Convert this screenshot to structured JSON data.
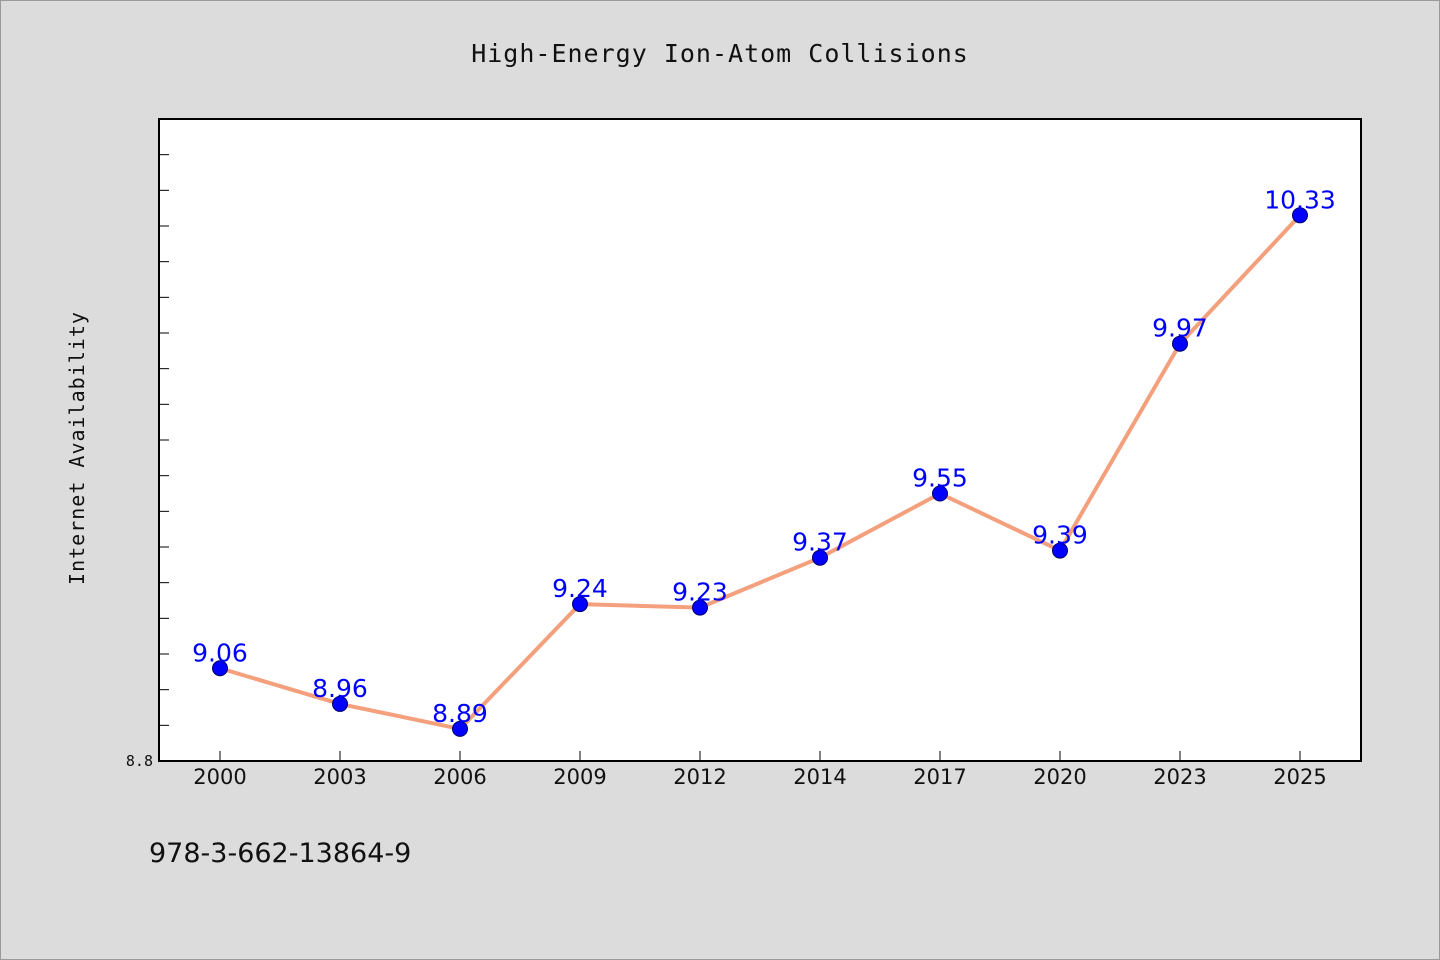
{
  "chart_data": {
    "type": "line",
    "title": "High-Energy Ion-Atom Collisions",
    "xlabel": "",
    "ylabel": "Internet Availability",
    "categories": [
      "2000",
      "2003",
      "2006",
      "2009",
      "2012",
      "2014",
      "2017",
      "2020",
      "2023",
      "2025"
    ],
    "series": [
      {
        "values": [
          9.06,
          8.96,
          8.89,
          9.24,
          9.23,
          9.37,
          9.55,
          9.39,
          9.97,
          10.33
        ],
        "labels": [
          "9.06",
          "8.96",
          "8.89",
          "9.24",
          "9.23",
          "9.37",
          "9.55",
          "9.39",
          "9.97",
          "10.33"
        ],
        "color": "#f4a07c",
        "marker_color": "#0000ff"
      }
    ],
    "ylim": [
      8.8,
      10.6
    ],
    "y_tick_labels": [
      "8.8"
    ],
    "grid": false,
    "legend": "none"
  },
  "footnote": "978-3-662-13864-9",
  "colors": {
    "background": "#dcdcdc",
    "plot_background": "#ffffff",
    "line": "#f4a07c",
    "marker": "#0000ff",
    "data_label": "#0000ff"
  }
}
